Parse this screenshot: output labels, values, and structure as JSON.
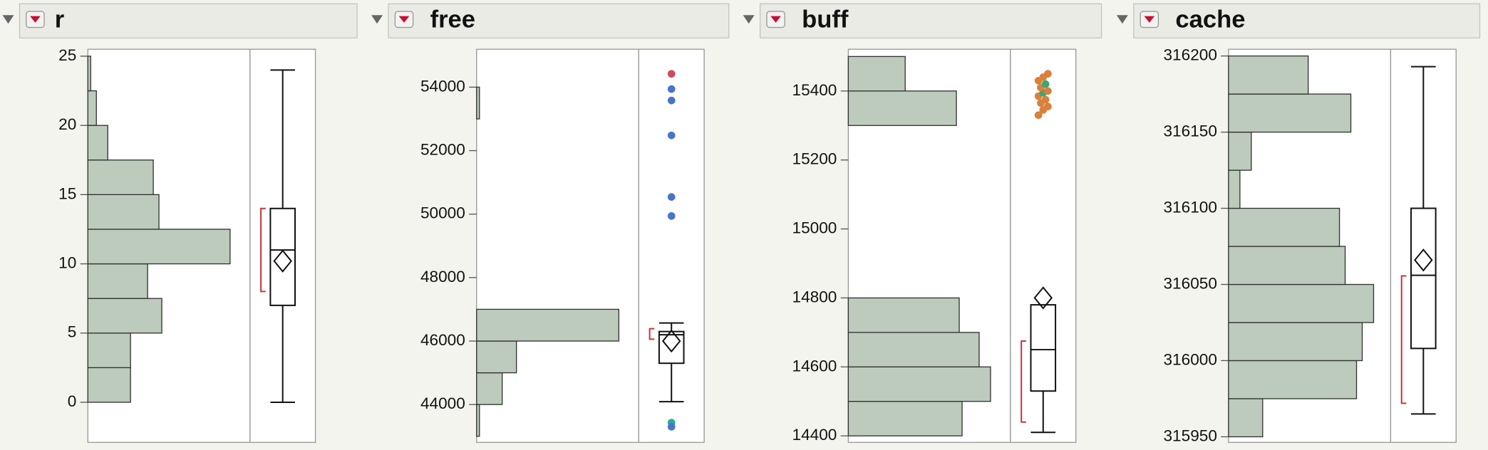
{
  "chart_data": [
    {
      "type": "histogram",
      "title": "r",
      "orientation": "horizontal",
      "color": "#bccbbc",
      "bins": [
        0,
        2.5,
        5,
        7.5,
        10,
        12.5,
        15,
        17.5,
        20,
        22.5,
        25
      ],
      "counts": [
        15,
        15,
        26,
        21,
        50,
        25,
        23,
        7,
        3,
        1
      ],
      "xlim": [
        0,
        57
      ],
      "ylim": [
        -2.9,
        25.5
      ],
      "yticks": [
        0,
        5,
        10,
        15,
        20,
        25
      ],
      "box": {
        "min": 0,
        "q1": 7,
        "median": 11,
        "q3": 14,
        "max": 24,
        "mean": 10.2,
        "shortest_half": [
          8,
          14
        ]
      },
      "outliers": []
    },
    {
      "type": "histogram",
      "title": "free",
      "orientation": "horizontal",
      "color": "#bccbbc",
      "bins": [
        43000,
        44000,
        45000,
        46000,
        47000,
        48000,
        49000,
        50000,
        51000,
        52000,
        53000,
        54000
      ],
      "counts": [
        1,
        9,
        14,
        50,
        0,
        0,
        0,
        0,
        0,
        0,
        1
      ],
      "xlim": [
        0,
        57
      ],
      "ylim": [
        42806,
        55194
      ],
      "yticks": [
        44000,
        46000,
        48000,
        50000,
        52000,
        54000
      ],
      "box": {
        "min": 44090,
        "q1": 45300,
        "median": 46200,
        "q3": 46300,
        "max": 46570,
        "mean": 46000,
        "shortest_half": [
          46060,
          46390
        ]
      },
      "outliers": [
        {
          "value": 54420,
          "color": "#d04a5a"
        },
        {
          "value": 53940,
          "color": "#4a72d0"
        },
        {
          "value": 53580,
          "color": "#4a72d0"
        },
        {
          "value": 52480,
          "color": "#4a72d0"
        },
        {
          "value": 50540,
          "color": "#4a72d0"
        },
        {
          "value": 49940,
          "color": "#4a72d0"
        },
        {
          "value": 43430,
          "color": "#2aa89a"
        },
        {
          "value": 43300,
          "color": "#4a72d0"
        }
      ]
    },
    {
      "type": "histogram",
      "title": "buff",
      "orientation": "horizontal",
      "color": "#bccbbc",
      "bins": [
        14400,
        14500,
        14600,
        14700,
        14800,
        14900,
        15000,
        15100,
        15200,
        15300,
        15400,
        15500
      ],
      "counts": [
        40,
        50,
        46,
        39,
        0,
        0,
        0,
        0,
        0,
        38,
        20
      ],
      "xlim": [
        0,
        57
      ],
      "ylim": [
        14381,
        15521
      ],
      "yticks": [
        14400,
        14600,
        14800,
        15000,
        15200,
        15400
      ],
      "box": {
        "min": 14410,
        "q1": 14530,
        "median": 14650,
        "q3": 14780,
        "max": 14780,
        "mean": 14800,
        "shortest_half": [
          14440,
          14675
        ]
      },
      "outliers": [
        {
          "value": 15330,
          "color": "#d9803a"
        },
        {
          "value": 15345,
          "color": "#d9803a"
        },
        {
          "value": 15355,
          "color": "#d9803a"
        },
        {
          "value": 15365,
          "color": "#d9803a"
        },
        {
          "value": 15375,
          "color": "#d9803a"
        },
        {
          "value": 15385,
          "color": "#d9803a"
        },
        {
          "value": 15395,
          "color": "#3aa870"
        },
        {
          "value": 15400,
          "color": "#d9803a"
        },
        {
          "value": 15410,
          "color": "#d9803a"
        },
        {
          "value": 15420,
          "color": "#3aa870"
        },
        {
          "value": 15430,
          "color": "#d9803a"
        },
        {
          "value": 15440,
          "color": "#d9803a"
        },
        {
          "value": 15450,
          "color": "#d9803a"
        }
      ]
    },
    {
      "type": "histogram",
      "title": "cache",
      "orientation": "horizontal",
      "color": "#bccbbc",
      "bins": [
        315950,
        315975,
        316000,
        316025,
        316050,
        316075,
        316100,
        316125,
        316150,
        316175,
        316200
      ],
      "counts": [
        12,
        45,
        47,
        51,
        41,
        39,
        4,
        8,
        43,
        28
      ],
      "xlim": [
        0,
        57
      ],
      "ylim": [
        315946.3,
        316204.4
      ],
      "yticks": [
        315950,
        316000,
        316050,
        316100,
        316150,
        316200
      ],
      "box": {
        "min": 315965,
        "q1": 316008,
        "median": 316056,
        "q3": 316100,
        "max": 316193,
        "mean": 316066,
        "shortest_half": [
          315972,
          316055.6
        ]
      },
      "outliers": []
    }
  ]
}
